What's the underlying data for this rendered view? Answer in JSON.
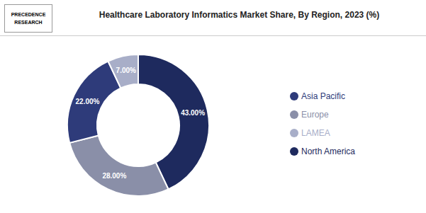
{
  "chart_data": {
    "type": "donut",
    "title": "Healthcare Laboratory Informatics Market Share, By Region, 2023 (%)",
    "annotations": [
      "PRECEDENCE",
      "RESEARCH"
    ],
    "categories": [
      "North America",
      "Europe",
      "Asia Pacific",
      "LAMEA"
    ],
    "values": [
      43.0,
      28.0,
      22.0,
      7.0
    ],
    "value_labels": [
      "43.00%",
      "28.00%",
      "22.00%",
      "7.00%"
    ],
    "colors": [
      "#1e2a5e",
      "#8a8fa8",
      "#2e3b7a",
      "#a8aec8"
    ],
    "data_labels": true,
    "legend": "right"
  }
}
